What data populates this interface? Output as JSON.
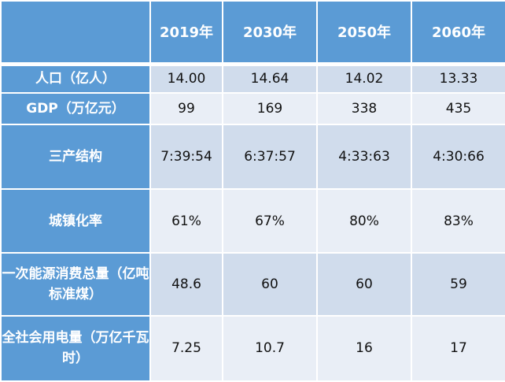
{
  "table": {
    "columns": [
      "",
      "2019年",
      "2030年",
      "2050年",
      "2060年"
    ],
    "rows": [
      {
        "label": "人口（亿人）",
        "values": [
          "14.00",
          "14.64",
          "14.02",
          "13.33"
        ]
      },
      {
        "label": "GDP（万亿元）",
        "values": [
          "99",
          "169",
          "338",
          "435"
        ]
      },
      {
        "label": "三产结构",
        "values": [
          "7:39:54",
          "6:37:57",
          "4:33:63",
          "4:30:66"
        ]
      },
      {
        "label": "城镇化率",
        "values": [
          "61%",
          "67%",
          "80%",
          "83%"
        ]
      },
      {
        "label": "一次能源消费总量（亿吨标准煤）",
        "values": [
          "48.6",
          "60",
          "60",
          "59"
        ]
      },
      {
        "label": "全社会用电量（万亿千瓦时）",
        "values": [
          "7.25",
          "10.7",
          "16",
          "17"
        ]
      }
    ]
  },
  "colors": {
    "header": "#5b9bd5",
    "dark_cell": "#d0dcec",
    "light_cell": "#e9eef6"
  }
}
